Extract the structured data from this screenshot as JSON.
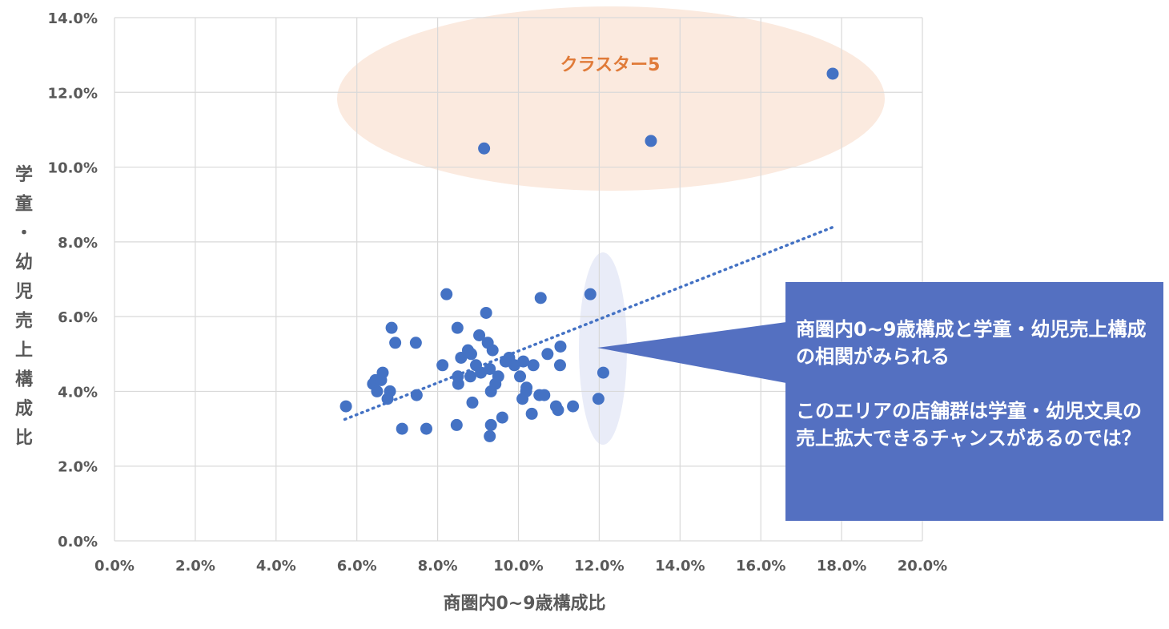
{
  "chart_data": {
    "type": "scatter",
    "title": "",
    "xlabel": "商圏内0~9歳構成比",
    "ylabel": "学童・幼児売上構成比",
    "xlim": [
      0,
      20
    ],
    "ylim": [
      0,
      14
    ],
    "xticks": [
      "0.0%",
      "2.0%",
      "4.0%",
      "6.0%",
      "8.0%",
      "10.0%",
      "12.0%",
      "14.0%",
      "16.0%",
      "18.0%",
      "20.0%"
    ],
    "yticks": [
      "0.0%",
      "2.0%",
      "4.0%",
      "6.0%",
      "8.0%",
      "10.0%",
      "12.0%",
      "14.0%"
    ],
    "grid": true,
    "legend": "none",
    "point_color": "#4472C4",
    "series": [
      {
        "points": [
          [
            5.73,
            3.6
          ],
          [
            6.4,
            4.2
          ],
          [
            6.46,
            4.3
          ],
          [
            6.5,
            4.0
          ],
          [
            6.6,
            4.3
          ],
          [
            6.64,
            4.5
          ],
          [
            6.76,
            3.8
          ],
          [
            6.82,
            4.0
          ],
          [
            6.86,
            5.7
          ],
          [
            6.95,
            5.3
          ],
          [
            7.12,
            3.0
          ],
          [
            7.46,
            5.3
          ],
          [
            7.48,
            3.9
          ],
          [
            7.72,
            3.0
          ],
          [
            8.12,
            4.7
          ],
          [
            8.22,
            6.6
          ],
          [
            8.47,
            3.1
          ],
          [
            8.49,
            5.7
          ],
          [
            8.5,
            4.4
          ],
          [
            8.51,
            4.2
          ],
          [
            8.58,
            4.9
          ],
          [
            8.75,
            5.1
          ],
          [
            8.81,
            4.4
          ],
          [
            8.83,
            5.0
          ],
          [
            8.86,
            3.7
          ],
          [
            8.95,
            4.7
          ],
          [
            9.03,
            5.5
          ],
          [
            9.07,
            4.5
          ],
          [
            9.15,
            10.5
          ],
          [
            9.2,
            6.1
          ],
          [
            9.24,
            5.3
          ],
          [
            9.29,
            4.6
          ],
          [
            9.29,
            2.8
          ],
          [
            9.32,
            4.0
          ],
          [
            9.32,
            3.1
          ],
          [
            9.36,
            5.1
          ],
          [
            9.43,
            4.2
          ],
          [
            9.5,
            4.4
          ],
          [
            9.6,
            3.3
          ],
          [
            9.68,
            4.8
          ],
          [
            9.77,
            4.9
          ],
          [
            9.9,
            4.7
          ],
          [
            10.04,
            4.4
          ],
          [
            10.1,
            3.8
          ],
          [
            10.12,
            4.8
          ],
          [
            10.19,
            4.0
          ],
          [
            10.2,
            4.1
          ],
          [
            10.33,
            3.4
          ],
          [
            10.37,
            4.7
          ],
          [
            10.52,
            3.9
          ],
          [
            10.55,
            6.5
          ],
          [
            10.64,
            3.9
          ],
          [
            10.72,
            5.0
          ],
          [
            10.93,
            3.6
          ],
          [
            10.98,
            3.5
          ],
          [
            11.03,
            4.7
          ],
          [
            11.04,
            5.2
          ],
          [
            11.35,
            3.6
          ],
          [
            11.78,
            6.6
          ],
          [
            11.98,
            3.8
          ],
          [
            12.1,
            4.5
          ],
          [
            13.28,
            10.7
          ],
          [
            17.78,
            12.5
          ]
        ]
      }
    ],
    "trendline": {
      "from": [
        5.7,
        3.25
      ],
      "to": [
        17.8,
        8.4
      ],
      "style": "dotted"
    },
    "annotations": {
      "cluster_label": "クラスター5"
    }
  },
  "callout": {
    "line1": "商圏内0~9歳構成と学童・幼児売上構成の相関がみられる",
    "line2": "このエリアの店舗群は学童・幼児文具の売上拡大できるチャンスがあるのでは？",
    "bg_color": "#5470C1"
  },
  "colors": {
    "cluster_ellipse": "#FBEADF",
    "highlight_ellipse": "#E9ECF8",
    "grid": "#D9D9D9",
    "tick_text": "#595959"
  }
}
